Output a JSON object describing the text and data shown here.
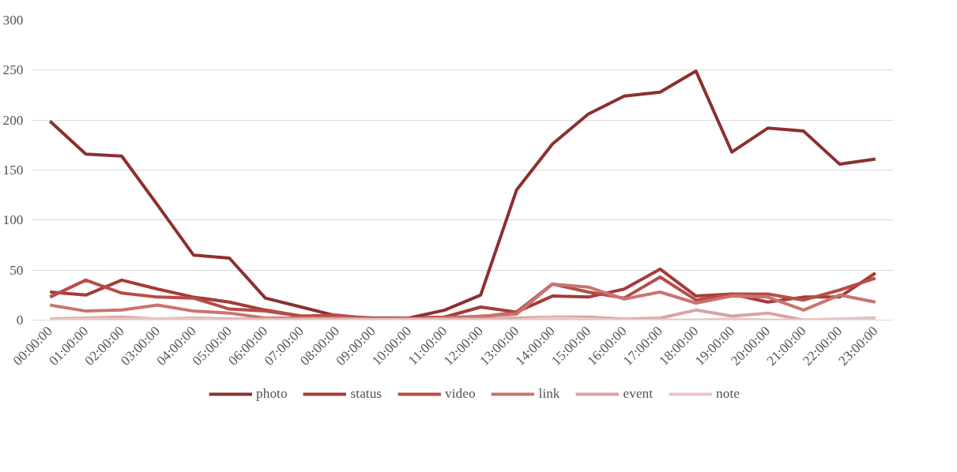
{
  "chart_data": {
    "type": "line",
    "categories": [
      "00:00:00",
      "01:00:00",
      "02:00:00",
      "03:00:00",
      "04:00:00",
      "05:00:00",
      "06:00:00",
      "07:00:00",
      "08:00:00",
      "09:00:00",
      "10:00:00",
      "11:00:00",
      "12:00:00",
      "13:00:00",
      "14:00:00",
      "15:00:00",
      "16:00:00",
      "17:00:00",
      "18:00:00",
      "19:00:00",
      "20:00:00",
      "21:00:00",
      "22:00:00",
      "23:00:00"
    ],
    "series": [
      {
        "name": "photo",
        "color": "#8b3030",
        "values": [
          199,
          166,
          164,
          115,
          65,
          62,
          22,
          13,
          4,
          2,
          2,
          10,
          25,
          130,
          176,
          206,
          224,
          228,
          249,
          168,
          192,
          189,
          156,
          161
        ]
      },
      {
        "name": "status",
        "color": "#a33c38",
        "values": [
          28,
          25,
          40,
          31,
          23,
          18,
          10,
          4,
          2,
          1,
          2,
          3,
          13,
          8,
          24,
          23,
          31,
          51,
          24,
          26,
          18,
          23,
          23,
          47
        ]
      },
      {
        "name": "video",
        "color": "#b84c47",
        "values": [
          23,
          40,
          27,
          23,
          22,
          11,
          9,
          4,
          5,
          1,
          1,
          3,
          3,
          8,
          36,
          28,
          22,
          43,
          20,
          26,
          26,
          20,
          30,
          42
        ]
      },
      {
        "name": "link",
        "color": "#c97470",
        "values": [
          15,
          9,
          10,
          15,
          9,
          7,
          2,
          2,
          2,
          1,
          1,
          2,
          4,
          6,
          36,
          33,
          21,
          28,
          17,
          24,
          23,
          10,
          25,
          18
        ]
      },
      {
        "name": "event",
        "color": "#d9a3a1",
        "values": [
          1,
          2,
          3,
          1,
          2,
          1,
          1,
          1,
          1,
          1,
          1,
          1,
          1,
          2,
          3,
          3,
          1,
          2,
          10,
          4,
          7,
          0,
          1,
          2
        ]
      },
      {
        "name": "note",
        "color": "#e8c8c7",
        "values": [
          0,
          1,
          1,
          1,
          1,
          0,
          0,
          0,
          0,
          0,
          0,
          0,
          0,
          0,
          2,
          1,
          0,
          0,
          0,
          1,
          0,
          0,
          1,
          1
        ]
      }
    ],
    "ylim": [
      0,
      300
    ],
    "yticks": [
      0,
      50,
      100,
      150,
      200,
      250,
      300
    ],
    "grid": "y",
    "legend": "bottom",
    "marker": "none",
    "line_style": "solid"
  }
}
